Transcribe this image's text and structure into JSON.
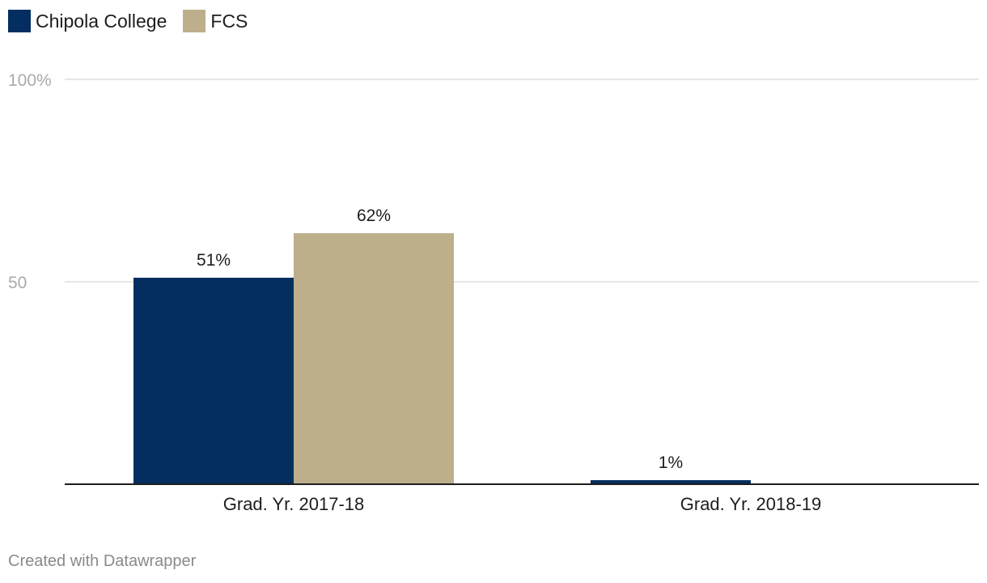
{
  "chart_data": {
    "type": "bar",
    "categories": [
      "Grad. Yr. 2017-18",
      "Grad. Yr. 2018-19"
    ],
    "series": [
      {
        "name": "Chipola College",
        "color": "#032e5f",
        "values": [
          51,
          1
        ],
        "labels": [
          "51%",
          "1%"
        ]
      },
      {
        "name": "FCS",
        "color": "#bdaf8b",
        "values": [
          62,
          null
        ],
        "labels": [
          "62%",
          ""
        ]
      }
    ],
    "ylim": [
      0,
      100
    ],
    "yticks": [
      {
        "value": 100,
        "label": "100%"
      },
      {
        "value": 50,
        "label": "50"
      }
    ],
    "grid": true,
    "legend_position": "top-left"
  },
  "credit": "Created with Datawrapper"
}
